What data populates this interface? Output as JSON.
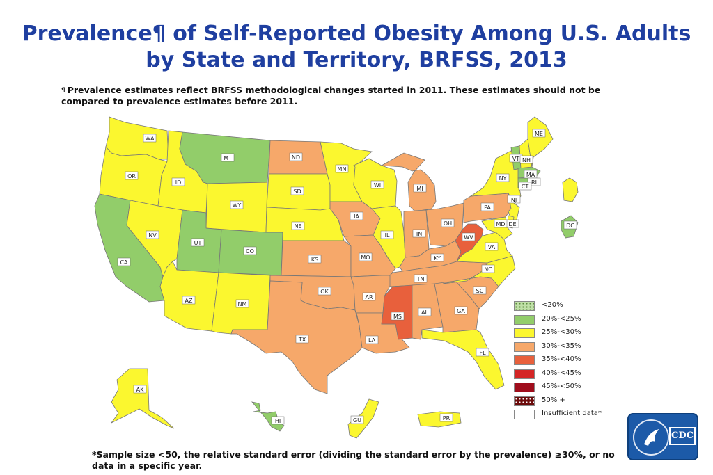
{
  "title": {
    "line1": "Prevalence¶ of Self-Reported Obesity Among U.S. Adults",
    "line2": "by State and Territory, BRFSS, 2013"
  },
  "note": {
    "mark": "¶",
    "text": "Prevalence estimates reflect BRFSS methodological changes started in 2011. These estimates should not be compared to prevalence estimates before 2011."
  },
  "colors": {
    "lt20": "#c0e0a8",
    "c20_25": "#92cd6a",
    "c25_30": "#fbf72f",
    "c30_35": "#f6a86a",
    "c35_40": "#e8603c",
    "c40_45": "#d42525",
    "c45_50": "#a00d1c",
    "c50plus": "#6b0b0b",
    "insufficient": "#ffffff"
  },
  "legend": [
    {
      "label": "<20%",
      "color": "#c0e0a8",
      "dotted": true
    },
    {
      "label": "20%-<25%",
      "color": "#92cd6a"
    },
    {
      "label": "25%-<30%",
      "color": "#fbf72f"
    },
    {
      "label": "30%-<35%",
      "color": "#f6a86a"
    },
    {
      "label": "35%-<40%",
      "color": "#e8603c"
    },
    {
      "label": "40%-<45%",
      "color": "#d42525"
    },
    {
      "label": "45%-<50%",
      "color": "#a00d1c"
    },
    {
      "label": "50% +",
      "color": "#6b0b0b",
      "dotted": true
    },
    {
      "label": "Insufficient data*",
      "color": "#ffffff"
    }
  ],
  "states": {
    "WA": {
      "label": "WA",
      "category": "25-30"
    },
    "OR": {
      "label": "OR",
      "category": "25-30"
    },
    "CA": {
      "label": "CA",
      "category": "20-25"
    },
    "ID": {
      "label": "ID",
      "category": "25-30"
    },
    "NV": {
      "label": "NV",
      "category": "25-30"
    },
    "MT": {
      "label": "MT",
      "category": "20-25"
    },
    "WY": {
      "label": "WY",
      "category": "25-30"
    },
    "UT": {
      "label": "UT",
      "category": "20-25"
    },
    "CO": {
      "label": "CO",
      "category": "20-25"
    },
    "AZ": {
      "label": "AZ",
      "category": "25-30"
    },
    "NM": {
      "label": "NM",
      "category": "25-30"
    },
    "ND": {
      "label": "ND",
      "category": "30-35"
    },
    "SD": {
      "label": "SD",
      "category": "25-30"
    },
    "NE": {
      "label": "NE",
      "category": "25-30"
    },
    "KS": {
      "label": "KS",
      "category": "30-35"
    },
    "OK": {
      "label": "OK",
      "category": "30-35"
    },
    "TX": {
      "label": "TX",
      "category": "30-35"
    },
    "MN": {
      "label": "MN",
      "category": "25-30"
    },
    "IA": {
      "label": "IA",
      "category": "30-35"
    },
    "MO": {
      "label": "MO",
      "category": "30-35"
    },
    "AR": {
      "label": "AR",
      "category": "30-35"
    },
    "LA": {
      "label": "LA",
      "category": "30-35"
    },
    "WI": {
      "label": "WI",
      "category": "25-30"
    },
    "IL": {
      "label": "IL",
      "category": "25-30"
    },
    "MI": {
      "label": "MI",
      "category": "30-35"
    },
    "IN": {
      "label": "IN",
      "category": "30-35"
    },
    "OH": {
      "label": "OH",
      "category": "30-35"
    },
    "KY": {
      "label": "KY",
      "category": "30-35"
    },
    "TN": {
      "label": "TN",
      "category": "30-35"
    },
    "MS": {
      "label": "MS",
      "category": "35-40"
    },
    "AL": {
      "label": "AL",
      "category": "30-35"
    },
    "GA": {
      "label": "GA",
      "category": "30-35"
    },
    "FL": {
      "label": "FL",
      "category": "25-30"
    },
    "SC": {
      "label": "SC",
      "category": "30-35"
    },
    "NC": {
      "label": "NC",
      "category": "25-30"
    },
    "VA": {
      "label": "VA",
      "category": "25-30"
    },
    "WV": {
      "label": "WV",
      "category": "35-40"
    },
    "PA": {
      "label": "PA",
      "category": "30-35"
    },
    "NY": {
      "label": "NY",
      "category": "25-30"
    },
    "VT": {
      "label": "VT",
      "category": "20-25"
    },
    "NH": {
      "label": "NH",
      "category": "25-30"
    },
    "ME": {
      "label": "ME",
      "category": "25-30"
    },
    "MA": {
      "label": "MA",
      "category": "20-25"
    },
    "RI": {
      "label": "RI",
      "category": "25-30"
    },
    "CT": {
      "label": "CT",
      "category": "20-25"
    },
    "NJ": {
      "label": "NJ",
      "category": "25-30"
    },
    "DE": {
      "label": "DE",
      "category": "25-30"
    },
    "MD": {
      "label": "MD",
      "category": "25-30"
    },
    "DC": {
      "label": "DC",
      "category": "20-25"
    },
    "AK": {
      "label": "AK",
      "category": "25-30"
    },
    "HI": {
      "label": "HI",
      "category": "20-25"
    },
    "GU": {
      "label": "GU",
      "category": "25-30"
    },
    "PR": {
      "label": "PR",
      "category": "25-30"
    }
  },
  "footnote": "*Sample size <50, the relative standard error (dividing the standard error by the prevalence) ≥30%, or no data in a specific year.",
  "logo": {
    "text": "CDC"
  }
}
